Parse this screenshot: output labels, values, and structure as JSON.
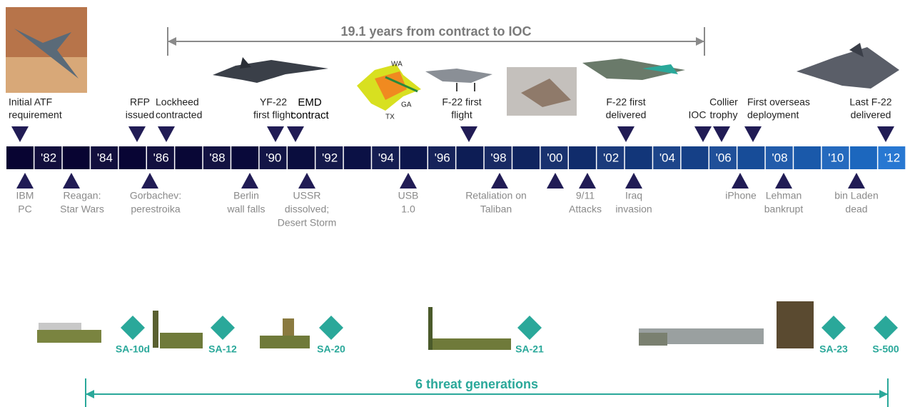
{
  "top_span": {
    "label": "19.1 years from contract to IOC"
  },
  "years": [
    "'82",
    "'84",
    "'86",
    "'88",
    "'90",
    "'92",
    "'94",
    "'96",
    "'98",
    "'00",
    "'02",
    "'04",
    "'06",
    "'08",
    "'10",
    "'12"
  ],
  "events_above": [
    {
      "lines": [
        "Initial ATF",
        "requirement"
      ]
    },
    {
      "lines": [
        "RFP",
        "issued"
      ]
    },
    {
      "lines": [
        "Lockheed",
        "contracted"
      ]
    },
    {
      "lines": [
        "YF-22",
        "first flight"
      ]
    },
    {
      "lines": [
        "EMD",
        "contract"
      ]
    },
    {
      "lines": [
        "F-22 first",
        "flight"
      ]
    },
    {
      "lines": [
        "F-22 first",
        "delivered"
      ]
    },
    {
      "lines": [
        "IOC"
      ]
    },
    {
      "lines": [
        "Collier",
        "trophy"
      ]
    },
    {
      "lines": [
        "First overseas",
        "deployment"
      ]
    },
    {
      "lines": [
        "Last F-22",
        "delivered"
      ]
    }
  ],
  "events_below": [
    {
      "lines": [
        "IBM",
        "PC"
      ]
    },
    {
      "lines": [
        "Reagan:",
        "Star Wars"
      ]
    },
    {
      "lines": [
        "Gorbachev:",
        "perestroika"
      ]
    },
    {
      "lines": [
        "Berlin",
        "wall falls"
      ]
    },
    {
      "lines": [
        "USSR",
        "dissolved;",
        "Desert Storm"
      ]
    },
    {
      "lines": [
        "USB",
        "1.0"
      ]
    },
    {
      "lines": [
        "Retaliation on",
        "Taliban"
      ]
    },
    {
      "lines": [
        "9/11",
        "Attacks"
      ]
    },
    {
      "lines": [
        "Iraq",
        "invasion"
      ]
    },
    {
      "lines": [
        "iPhone"
      ]
    },
    {
      "lines": [
        "Lehman",
        "bankrupt"
      ]
    },
    {
      "lines": [
        "bin Laden",
        "dead"
      ]
    }
  ],
  "threats": [
    "SA-10d",
    "SA-12",
    "SA-20",
    "SA-21",
    "SA-23",
    "S-500"
  ],
  "bottom_span": {
    "label": "6 threat generations"
  }
}
